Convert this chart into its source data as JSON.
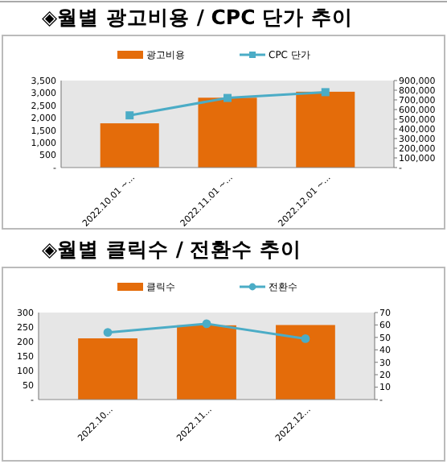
{
  "chart_data": [
    {
      "type": "bar",
      "title": "◈월별 광고비용 / CPC 단가 추이",
      "categories": [
        "2022.10.01 ~...",
        "2022.11.01 ~...",
        "2022.12.01 ~..."
      ],
      "series": [
        {
          "name": "광고비용",
          "color": "#e46c0a",
          "values": [
            1780,
            2810,
            3050
          ]
        },
        {
          "name": "CPC 단가",
          "type": "line",
          "axis": "y2",
          "color": "#4bacc6",
          "marker": "square",
          "values": [
            540000,
            720000,
            780000
          ]
        }
      ],
      "ylim": [
        0,
        3500
      ],
      "yticks": [
        {
          "value": 0,
          "label": "-"
        },
        500,
        {
          "value": 1000,
          "label": "1,000"
        },
        {
          "value": 1500,
          "label": "1,500"
        },
        {
          "value": 2000,
          "label": "2,000"
        },
        {
          "value": 2500,
          "label": "2,500"
        },
        {
          "value": 3000,
          "label": "3,000"
        },
        {
          "value": 3500,
          "label": "3,500"
        }
      ],
      "y2lim": [
        0,
        900000
      ],
      "y2ticks": [
        {
          "value": 0,
          "label": "-"
        },
        {
          "value": 100000,
          "label": "100,000"
        },
        {
          "value": 200000,
          "label": "200,000"
        },
        {
          "value": 300000,
          "label": "300,000"
        },
        {
          "value": 400000,
          "label": "400,000"
        },
        {
          "value": 500000,
          "label": "500,000"
        },
        {
          "value": 600000,
          "label": "600,000"
        },
        {
          "value": 700000,
          "label": "700,000"
        },
        {
          "value": 800000,
          "label": "800,000"
        },
        {
          "value": 900000,
          "label": "900,000"
        }
      ],
      "legend": "top",
      "grid": false
    },
    {
      "type": "bar",
      "title": "◈월별 클릭수 / 전환수 추이",
      "categories": [
        "2022.10...",
        "2022.11...",
        "2022.12..."
      ],
      "series": [
        {
          "name": "클릭수",
          "color": "#e46c0a",
          "values": [
            211,
            256,
            257
          ]
        },
        {
          "name": "전환수",
          "type": "line",
          "axis": "y2",
          "color": "#4bacc6",
          "marker": "circle",
          "values": [
            54,
            61,
            49
          ]
        }
      ],
      "ylim": [
        0,
        300
      ],
      "yticks": [
        {
          "value": 0,
          "label": "-"
        },
        50,
        100,
        150,
        200,
        250,
        300
      ],
      "y2lim": [
        0,
        70
      ],
      "y2ticks": [
        {
          "value": 0,
          "label": "-"
        },
        10,
        20,
        30,
        40,
        50,
        60,
        70
      ],
      "legend": "top",
      "grid": false
    }
  ]
}
